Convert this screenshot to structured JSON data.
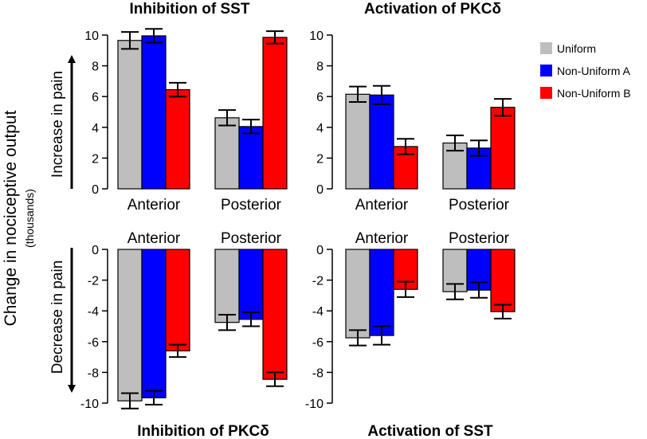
{
  "y_label": "Change in nociceptive output",
  "y_label_sub": "(thousands)",
  "increase_label": "Increase in pain",
  "decrease_label": "Decrease in pain",
  "legend": [
    {
      "name": "Uniform",
      "color": "#bebebe"
    },
    {
      "name": "Non-Uniform A",
      "color": "#0000ff"
    },
    {
      "name": "Non-Uniform B",
      "color": "#ff0000"
    }
  ],
  "chart_data": [
    {
      "type": "bar",
      "title": "Inhibition of SST",
      "categories": [
        "Anterior",
        "Posterior"
      ],
      "ylim": [
        0,
        10
      ],
      "yticks": [
        "0",
        "2",
        "4",
        "6",
        "8",
        "10"
      ],
      "series": [
        {
          "name": "Uniform",
          "values": [
            9.65,
            4.62
          ],
          "errors": [
            0.55,
            0.5
          ]
        },
        {
          "name": "Non-Uniform A",
          "values": [
            9.95,
            4.05
          ],
          "errors": [
            0.45,
            0.45
          ]
        },
        {
          "name": "Non-Uniform B",
          "values": [
            6.45,
            9.85
          ],
          "errors": [
            0.45,
            0.4
          ]
        }
      ]
    },
    {
      "type": "bar",
      "title": "Activation of PKCδ",
      "categories": [
        "Anterior",
        "Posterior"
      ],
      "ylim": [
        0,
        10
      ],
      "yticks": [
        "0",
        "2",
        "4",
        "6",
        "8",
        "10"
      ],
      "series": [
        {
          "name": "Uniform",
          "values": [
            6.15,
            2.98
          ],
          "errors": [
            0.5,
            0.5
          ]
        },
        {
          "name": "Non-Uniform A",
          "values": [
            6.1,
            2.65
          ],
          "errors": [
            0.6,
            0.5
          ]
        },
        {
          "name": "Non-Uniform B",
          "values": [
            2.75,
            5.3
          ],
          "errors": [
            0.5,
            0.55
          ]
        }
      ]
    },
    {
      "type": "bar",
      "title": "Inhibition of PKCδ",
      "categories": [
        "Anterior",
        "Posterior"
      ],
      "ylim": [
        -10,
        0
      ],
      "yticks": [
        "0",
        "-2",
        "-4",
        "-6",
        "-8",
        "-10"
      ],
      "series": [
        {
          "name": "Uniform",
          "values": [
            -9.85,
            -4.75
          ],
          "errors": [
            0.5,
            0.5
          ]
        },
        {
          "name": "Non-Uniform A",
          "values": [
            -9.65,
            -4.55
          ],
          "errors": [
            0.45,
            0.45
          ]
        },
        {
          "name": "Non-Uniform B",
          "values": [
            -6.6,
            -8.45
          ],
          "errors": [
            0.4,
            0.45
          ]
        }
      ]
    },
    {
      "type": "bar",
      "title": "Activation of SST",
      "categories": [
        "Anterior",
        "Posterior"
      ],
      "ylim": [
        -10,
        0
      ],
      "yticks": [
        "0",
        "-2",
        "-4",
        "-6",
        "-8",
        "-10"
      ],
      "series": [
        {
          "name": "Uniform",
          "values": [
            -5.75,
            -2.75
          ],
          "errors": [
            0.5,
            0.5
          ]
        },
        {
          "name": "Non-Uniform A",
          "values": [
            -5.6,
            -2.65
          ],
          "errors": [
            0.6,
            0.5
          ]
        },
        {
          "name": "Non-Uniform B",
          "values": [
            -2.6,
            -4.05
          ],
          "errors": [
            0.5,
            0.45
          ]
        }
      ]
    }
  ]
}
